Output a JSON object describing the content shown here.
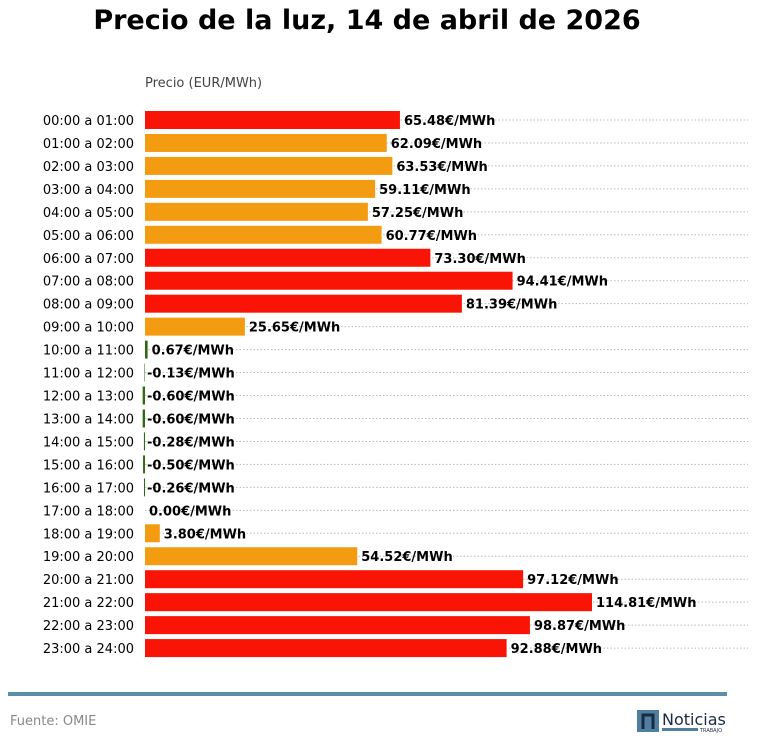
{
  "chart_data": {
    "type": "bar",
    "orientation": "horizontal",
    "title": "Precio de la luz, 14 de abril de 2026",
    "xlabel": "Precio (EUR/MWh)",
    "xlim": [
      0,
      120
    ],
    "grid": "dotted horizontal lines",
    "categories": [
      "00:00 a 01:00",
      "01:00 a 02:00",
      "02:00 a 03:00",
      "03:00 a 04:00",
      "04:00 a 05:00",
      "05:00 a 06:00",
      "06:00 a 07:00",
      "07:00 a 08:00",
      "08:00 a 09:00",
      "09:00 a 10:00",
      "10:00 a 11:00",
      "11:00 a 12:00",
      "12:00 a 13:00",
      "13:00 a 14:00",
      "14:00 a 15:00",
      "15:00 a 16:00",
      "16:00 a 17:00",
      "17:00 a 18:00",
      "18:00 a 19:00",
      "19:00 a 20:00",
      "20:00 a 21:00",
      "21:00 a 22:00",
      "22:00 a 23:00",
      "23:00 a 24:00"
    ],
    "values": [
      65.48,
      62.09,
      63.53,
      59.11,
      57.25,
      60.77,
      73.3,
      94.41,
      81.39,
      25.65,
      0.67,
      -0.13,
      -0.6,
      -0.6,
      -0.28,
      -0.5,
      -0.26,
      0.0,
      3.8,
      54.52,
      97.12,
      114.81,
      98.87,
      92.88
    ],
    "labels": [
      "65.48€/MWh",
      "62.09€/MWh",
      "63.53€/MWh",
      "59.11€/MWh",
      "57.25€/MWh",
      "60.77€/MWh",
      "73.30€/MWh",
      "94.41€/MWh",
      "81.39€/MWh",
      "25.65€/MWh",
      "0.67€/MWh",
      "-0.13€/MWh",
      "-0.60€/MWh",
      "-0.60€/MWh",
      "-0.28€/MWh",
      "-0.50€/MWh",
      "-0.26€/MWh",
      "0.00€/MWh",
      "3.80€/MWh",
      "54.52€/MWh",
      "97.12€/MWh",
      "114.81€/MWh",
      "98.87€/MWh",
      "92.88€/MWh"
    ],
    "bar_colors": [
      "red",
      "orange",
      "orange",
      "orange",
      "orange",
      "orange",
      "red",
      "red",
      "red",
      "orange",
      "green",
      "green",
      "green",
      "green",
      "green",
      "green",
      "green",
      "green",
      "orange",
      "orange",
      "red",
      "red",
      "red",
      "red"
    ],
    "palette": {
      "red": "#fa1405",
      "orange": "#f39c12",
      "green": "#2e6b0f"
    }
  },
  "footer": {
    "source": "Fuente: OMIE",
    "accent": "#5b8fa8"
  },
  "logo": {
    "text": "Noticias",
    "subtext": "TRABAJO"
  }
}
